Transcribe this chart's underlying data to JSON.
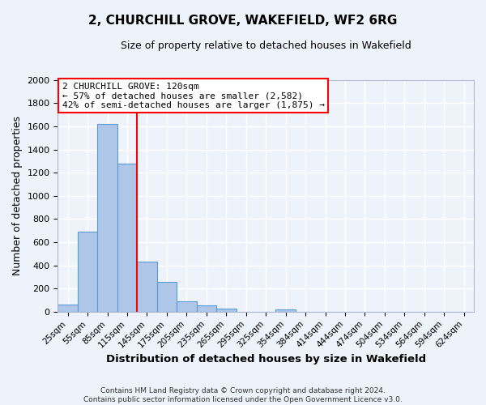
{
  "title": "2, CHURCHILL GROVE, WAKEFIELD, WF2 6RG",
  "subtitle": "Size of property relative to detached houses in Wakefield",
  "xlabel": "Distribution of detached houses by size in Wakefield",
  "ylabel": "Number of detached properties",
  "bar_labels": [
    "25sqm",
    "55sqm",
    "85sqm",
    "115sqm",
    "145sqm",
    "175sqm",
    "205sqm",
    "235sqm",
    "265sqm",
    "295sqm",
    "325sqm",
    "354sqm",
    "384sqm",
    "414sqm",
    "444sqm",
    "474sqm",
    "504sqm",
    "534sqm",
    "564sqm",
    "594sqm",
    "624sqm"
  ],
  "bar_values": [
    65,
    690,
    1625,
    1280,
    430,
    255,
    88,
    53,
    30,
    0,
    0,
    20,
    0,
    0,
    0,
    0,
    0,
    0,
    0,
    0,
    0
  ],
  "bar_color": "#aec6e8",
  "bar_edge_color": "#5b9bd5",
  "vline_color": "red",
  "ylim": [
    0,
    2000
  ],
  "yticks": [
    0,
    200,
    400,
    600,
    800,
    1000,
    1200,
    1400,
    1600,
    1800,
    2000
  ],
  "annotation_title": "2 CHURCHILL GROVE: 120sqm",
  "annotation_line1": "← 57% of detached houses are smaller (2,582)",
  "annotation_line2": "42% of semi-detached houses are larger (1,875) →",
  "annotation_box_color": "#ffffff",
  "annotation_box_edge": "red",
  "footer1": "Contains HM Land Registry data © Crown copyright and database right 2024.",
  "footer2": "Contains public sector information licensed under the Open Government Licence v3.0.",
  "background_color": "#eef2fa",
  "grid_color": "#ffffff"
}
